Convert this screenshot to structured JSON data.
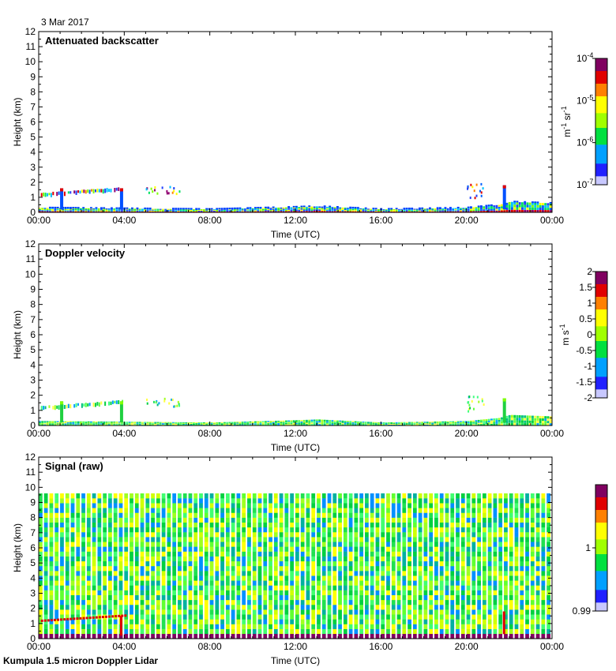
{
  "date_label": "3 Mar 2017",
  "footer_label": "Kumpula 1.5 micron Doppler Lidar",
  "chart_data": [
    {
      "type": "heatmap",
      "title": "Attenuated backscatter",
      "xlabel": "Time (UTC)",
      "ylabel": "Height (km)",
      "xlim": [
        0,
        24
      ],
      "ylim": [
        0,
        12
      ],
      "xticks": [
        "00:00",
        "04:00",
        "08:00",
        "12:00",
        "16:00",
        "20:00",
        "00:00"
      ],
      "yticks": [
        "0",
        "1",
        "2",
        "3",
        "4",
        "5",
        "6",
        "7",
        "8",
        "9",
        "10",
        "11",
        "12"
      ],
      "colorbar": {
        "unit_main": "m",
        "unit_sup1": "-1",
        "unit_mid": " sr",
        "unit_sup2": "-1",
        "scale": "log",
        "ticks": [
          {
            "base": "10",
            "exp": "-4"
          },
          {
            "base": "10",
            "exp": "-5"
          },
          {
            "base": "10",
            "exp": "-6"
          },
          {
            "base": "10",
            "exp": "-7"
          }
        ]
      },
      "features": {
        "surface_layer_top_km": [
          [
            0,
            0.3
          ],
          [
            4,
            0.25
          ],
          [
            8,
            0.2
          ],
          [
            12,
            0.35
          ],
          [
            13,
            0.4
          ],
          [
            16,
            0.2
          ],
          [
            20,
            0.3
          ],
          [
            21.5,
            0.5
          ],
          [
            22,
            0.7
          ],
          [
            24,
            0.6
          ]
        ],
        "elevated_layer": {
          "t_start": 0,
          "t_end": 4,
          "height_start_km": 1.15,
          "height_end_km": 1.55
        },
        "cloud_spikes": [
          {
            "t": 1.0,
            "top_km": 1.6
          },
          {
            "t": 3.8,
            "top_km": 1.6
          },
          {
            "t": 21.7,
            "top_km": 1.8
          }
        ]
      }
    },
    {
      "type": "heatmap",
      "title": "Doppler velocity",
      "xlabel": "Time (UTC)",
      "ylabel": "Height (km)",
      "xlim": [
        0,
        24
      ],
      "ylim": [
        0,
        12
      ],
      "xticks": [
        "00:00",
        "04:00",
        "08:00",
        "12:00",
        "16:00",
        "20:00",
        "00:00"
      ],
      "yticks": [
        "0",
        "1",
        "2",
        "3",
        "4",
        "5",
        "6",
        "7",
        "8",
        "9",
        "10",
        "11",
        "12"
      ],
      "colorbar": {
        "unit_main": "m s",
        "unit_sup": "-1",
        "scale": "linear",
        "ticks": [
          "2",
          "1.5",
          "1",
          "0.5",
          "0",
          "-0.5",
          "-1",
          "-1.5",
          "-2"
        ]
      }
    },
    {
      "type": "heatmap",
      "title": "Signal (raw)",
      "xlabel": "Time (UTC)",
      "ylabel": "Height (km)",
      "xlim": [
        0,
        24
      ],
      "ylim": [
        0,
        12
      ],
      "xticks": [
        "00:00",
        "04:00",
        "08:00",
        "12:00",
        "16:00",
        "20:00",
        "00:00"
      ],
      "yticks": [
        "0",
        "1",
        "2",
        "3",
        "4",
        "5",
        "6",
        "7",
        "8",
        "9",
        "10",
        "11",
        "12"
      ],
      "colorbar": {
        "scale": "linear",
        "ticks": [
          "1",
          "0.99"
        ]
      },
      "features": {
        "data_top_km": 9.6,
        "profile_count": 96
      }
    }
  ]
}
